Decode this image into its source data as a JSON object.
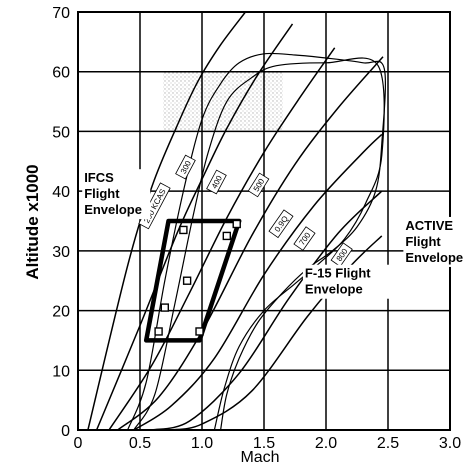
{
  "chart_data": {
    "type": "line",
    "xlabel": "Mach",
    "ylabel": "Altitude  x1000",
    "xlim": [
      0,
      3.0
    ],
    "ylim": [
      0,
      70
    ],
    "x_ticks": [
      "0",
      "0.5",
      "1.0",
      "1.5",
      "2.0",
      "2.5",
      "3.0"
    ],
    "x_tick_values": [
      0,
      0.5,
      1.0,
      1.5,
      2.0,
      2.5,
      3.0
    ],
    "y_ticks": [
      "0",
      "10",
      "20",
      "30",
      "40",
      "50",
      "60",
      "70"
    ],
    "y_tick_values": [
      0,
      10,
      20,
      30,
      40,
      50,
      60,
      70
    ],
    "grid": true,
    "annotations": [
      {
        "id": "ifcs",
        "lines": [
          "IFCS",
          "Flight",
          "Envelope"
        ],
        "x": 0.05,
        "y": 41.5
      },
      {
        "id": "active",
        "lines": [
          "ACTIVE",
          "Flight",
          "Envelope"
        ],
        "x": 2.64,
        "y": 33.5
      },
      {
        "id": "f15",
        "lines": [
          "F-15 Flight",
          "Envelope"
        ],
        "x": 1.83,
        "y": 25.5
      }
    ],
    "curve_labels": [
      {
        "text": "200 KCAS",
        "x": 0.62,
        "y": 37.5,
        "angle": -62
      },
      {
        "text": "300",
        "x": 0.87,
        "y": 44.0,
        "angle": -62
      },
      {
        "text": "400",
        "x": 1.12,
        "y": 41.5,
        "angle": -62
      },
      {
        "text": "500",
        "x": 1.46,
        "y": 41.0,
        "angle": -58
      },
      {
        "text": "0.9Q",
        "x": 1.64,
        "y": 34.5,
        "angle": -55
      },
      {
        "text": "700",
        "x": 1.83,
        "y": 32.0,
        "angle": -55
      },
      {
        "text": "800",
        "x": 2.13,
        "y": 29.3,
        "angle": -55
      }
    ],
    "series": [
      {
        "id": "kcas-200",
        "values": [
          [
            0.08,
            0
          ],
          [
            0.4,
            27.5
          ],
          [
            0.6,
            41
          ],
          [
            0.8,
            51
          ],
          [
            0.97,
            58.5
          ],
          [
            1.15,
            64.5
          ],
          [
            1.35,
            70
          ]
        ]
      },
      {
        "id": "kcas-300",
        "values": [
          [
            0.15,
            0
          ],
          [
            0.5,
            17.5
          ],
          [
            0.8,
            33
          ],
          [
            1.0,
            42
          ],
          [
            1.2,
            50.5
          ],
          [
            1.45,
            59.5
          ],
          [
            1.73,
            68
          ]
        ]
      },
      {
        "id": "kcas-400",
        "values": [
          [
            0.25,
            0
          ],
          [
            0.6,
            11
          ],
          [
            0.9,
            23
          ],
          [
            1.2,
            35.5
          ],
          [
            1.5,
            46.5
          ],
          [
            1.8,
            56
          ],
          [
            2.07,
            64
          ]
        ]
      },
      {
        "id": "kcas-500",
        "values": [
          [
            0.32,
            0
          ],
          [
            0.65,
            5.5
          ],
          [
            1.0,
            16.5
          ],
          [
            1.4,
            32.5
          ],
          [
            1.75,
            44.5
          ],
          [
            2.1,
            54
          ],
          [
            2.46,
            62.5
          ]
        ]
      },
      {
        "id": "q-0.9",
        "values": [
          [
            0.45,
            0
          ],
          [
            0.75,
            4
          ],
          [
            1.1,
            12
          ],
          [
            1.5,
            26
          ],
          [
            1.9,
            37.5
          ],
          [
            2.3,
            46.5
          ],
          [
            2.45,
            49.5
          ]
        ]
      },
      {
        "id": "kcas-700",
        "values": [
          [
            0.6,
            0
          ],
          [
            0.9,
            1.5
          ],
          [
            1.3,
            9.5
          ],
          [
            1.7,
            22
          ],
          [
            2.1,
            33
          ],
          [
            2.45,
            40
          ]
        ]
      },
      {
        "id": "kcas-800",
        "values": [
          [
            0.75,
            0
          ],
          [
            1.0,
            1
          ],
          [
            1.4,
            6.5
          ],
          [
            1.85,
            19
          ],
          [
            2.2,
            27.5
          ],
          [
            2.45,
            32.5
          ]
        ]
      },
      {
        "id": "active-envelope",
        "values": [
          [
            0.4,
            0
          ],
          [
            0.55,
            8
          ],
          [
            0.7,
            25
          ],
          [
            0.85,
            40
          ],
          [
            1.0,
            52
          ],
          [
            1.15,
            58
          ],
          [
            1.3,
            61.5
          ],
          [
            1.5,
            63
          ],
          [
            1.75,
            62.8
          ],
          [
            2.0,
            62.3
          ],
          [
            2.3,
            61.5
          ],
          [
            2.47,
            60.5
          ],
          [
            2.45,
            48
          ],
          [
            2.4,
            40
          ],
          [
            2.25,
            34
          ],
          [
            2.05,
            30
          ],
          [
            1.85,
            27
          ],
          [
            1.65,
            23
          ],
          [
            1.45,
            18
          ],
          [
            1.3,
            12
          ],
          [
            1.2,
            6
          ],
          [
            1.15,
            0
          ]
        ]
      },
      {
        "id": "f15-envelope",
        "values": [
          [
            0.45,
            0
          ],
          [
            0.62,
            6
          ],
          [
            0.78,
            21
          ],
          [
            0.93,
            36
          ],
          [
            1.05,
            46.5
          ],
          [
            1.2,
            55
          ],
          [
            1.4,
            59
          ],
          [
            1.6,
            61
          ],
          [
            2.0,
            61.5
          ],
          [
            2.42,
            61
          ],
          [
            2.45,
            46
          ],
          [
            2.32,
            38
          ],
          [
            2.15,
            32
          ],
          [
            1.95,
            28
          ],
          [
            1.75,
            24.5
          ],
          [
            1.5,
            20
          ],
          [
            1.3,
            14
          ],
          [
            1.18,
            7
          ],
          [
            1.1,
            0
          ]
        ]
      },
      {
        "id": "ifcs-envelope",
        "values": [
          [
            0.55,
            15
          ],
          [
            0.73,
            35
          ],
          [
            1.3,
            35
          ],
          [
            0.98,
            15
          ],
          [
            0.55,
            15
          ]
        ]
      }
    ],
    "test_points": [
      {
        "x": 0.65,
        "y": 16.5
      },
      {
        "x": 0.98,
        "y": 16.5
      },
      {
        "x": 0.7,
        "y": 20.5
      },
      {
        "x": 0.88,
        "y": 25.0
      },
      {
        "x": 0.85,
        "y": 33.5
      },
      {
        "x": 1.2,
        "y": 32.5
      },
      {
        "x": 1.28,
        "y": 34.5
      }
    ]
  }
}
